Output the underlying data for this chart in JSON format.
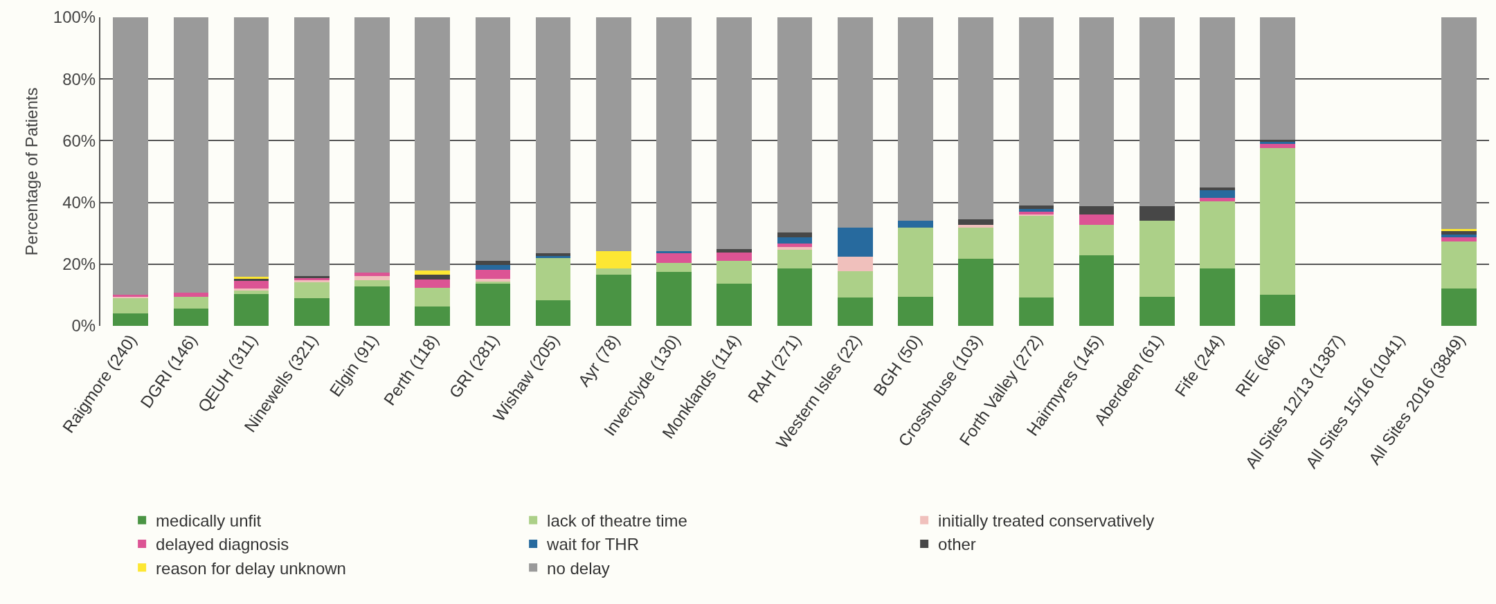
{
  "chart_data": {
    "type": "bar",
    "stacked": true,
    "ylabel": "Percentage of Patients",
    "categories": [
      "Raigmore (240)",
      "DGRI (146)",
      "QEUH (311)",
      "Ninewells (321)",
      "Elgin (91)",
      "Perth (118)",
      "GRI (281)",
      "Wishaw (205)",
      "Ayr (78)",
      "Inverclyde (130)",
      "Monklands (114)",
      "RAH (271)",
      "Western Isles (22)",
      "BGH (50)",
      "Crosshouse (103)",
      "Forth Valley (272)",
      "Hairmyres (145)",
      "Aberdeen (61)",
      "Fife (244)",
      "RIE (646)",
      "All Sites 12/13 (1387)",
      "All Sites 15/16 (1041)",
      "All Sites 2016 (3849)"
    ],
    "series": [
      {
        "name": "medically unfit",
        "color": "#4a9444",
        "values": [
          4,
          5.7,
          10.3,
          9,
          12.8,
          6.3,
          13.7,
          8.3,
          16.7,
          17.5,
          13.7,
          18.6,
          9.1,
          9.5,
          21.8,
          9.1,
          22.9,
          9.5,
          18.6,
          10.2,
          null,
          null,
          12.2
        ]
      },
      {
        "name": "lack of theatre time",
        "color": "#acd088",
        "values": [
          5,
          3.8,
          1.2,
          5.1,
          1.9,
          6,
          0.6,
          13.6,
          1.8,
          3,
          7.4,
          6,
          8.7,
          22.3,
          10,
          26.5,
          9.8,
          24.5,
          21.8,
          47.5,
          null,
          null,
          15.2
        ]
      },
      {
        "name": "initially treated conservatively",
        "color": "#f0c0bc",
        "values": [
          0.4,
          0,
          0.6,
          0.7,
          1.4,
          0,
          0.9,
          0,
          0,
          0,
          0,
          0.9,
          4.7,
          0,
          1,
          0.6,
          0,
          0,
          0,
          0,
          null,
          null,
          0
        ]
      },
      {
        "name": "delayed diagnosis",
        "color": "#dc5494",
        "values": [
          0.6,
          1.3,
          2.4,
          0.6,
          1.2,
          2.8,
          3,
          0,
          0,
          3.1,
          2.7,
          1.1,
          0,
          0,
          0,
          0.8,
          3.5,
          0,
          1,
          1.3,
          null,
          null,
          1.3
        ]
      },
      {
        "name": "wait for THR",
        "color": "#276a9e",
        "values": [
          0,
          0,
          0,
          0,
          0,
          0,
          1.6,
          0.7,
          0,
          0.7,
          0,
          2.2,
          9.3,
          2.3,
          0,
          0.8,
          0,
          0,
          2.5,
          0.6,
          null,
          null,
          1
        ]
      },
      {
        "name": "other",
        "color": "#474747",
        "values": [
          0,
          0,
          0.8,
          0.7,
          0,
          1.5,
          1.3,
          1,
          0,
          0,
          1.2,
          1.4,
          0,
          0,
          1.7,
          1.2,
          2.7,
          4.9,
          1,
          0.8,
          null,
          null,
          1
        ]
      },
      {
        "name": "reason for delay unknown",
        "color": "#fde733",
        "values": [
          0,
          0,
          0.7,
          0,
          0,
          1.4,
          0,
          0,
          5.8,
          0,
          0,
          0,
          0,
          0,
          0,
          0,
          0,
          0,
          0,
          0,
          null,
          null,
          0.6
        ]
      },
      {
        "name": "no delay",
        "color": "#9a9a9a",
        "values": [
          90,
          89.2,
          84,
          83.9,
          82.7,
          82,
          78.9,
          76.4,
          75.7,
          75.7,
          75,
          69.8,
          68.2,
          65.9,
          65.5,
          61,
          61.1,
          61.1,
          55.1,
          39.6,
          null,
          null,
          68.7
        ]
      }
    ],
    "ylim": [
      0,
      100
    ],
    "yticks": [
      {
        "value": 0,
        "label": "0%"
      },
      {
        "value": 20,
        "label": "20%"
      },
      {
        "value": 40,
        "label": "40%"
      },
      {
        "value": 60,
        "label": "60%"
      },
      {
        "value": 80,
        "label": "80%"
      },
      {
        "value": 100,
        "label": "100%"
      }
    ],
    "grid": "y",
    "legend": "bottom"
  }
}
